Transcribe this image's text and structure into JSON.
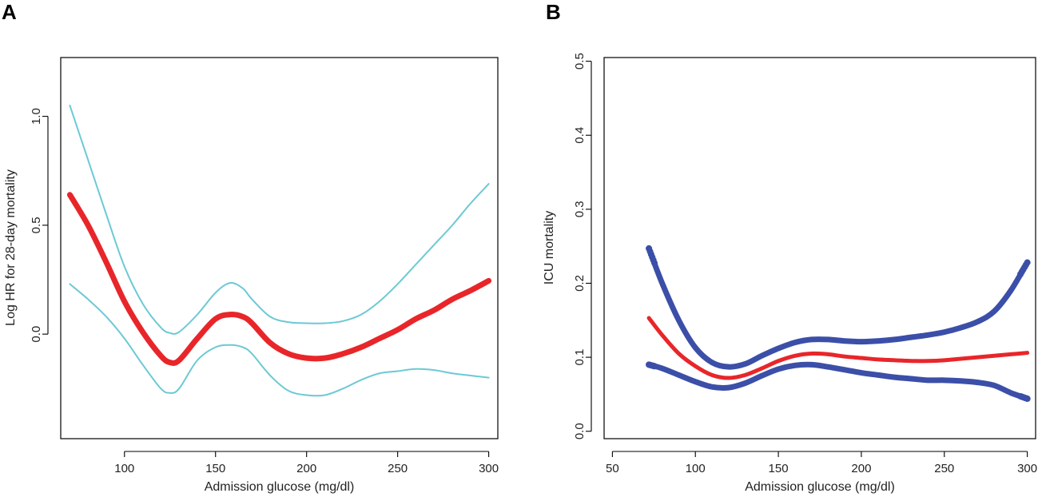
{
  "chart_data": [
    {
      "panel": "A",
      "type": "line",
      "title": "",
      "xlabel": "Admission glucose (mg/dl)",
      "ylabel": "Log HR for 28-day mortality",
      "xlim": [
        65,
        305
      ],
      "ylim": [
        -0.48,
        1.27
      ],
      "xticks": [
        100,
        150,
        200,
        250,
        300
      ],
      "yticks": [
        0.0,
        0.5,
        1.0
      ],
      "ytick_labels": [
        "0.0",
        "0.5",
        "1.0"
      ],
      "grid": false,
      "legend": "none",
      "colors": {
        "estimate": "#e8262a",
        "ci": "#6cc9d4"
      },
      "x": [
        70,
        80,
        90,
        100,
        110,
        120,
        125,
        130,
        140,
        150,
        158,
        165,
        170,
        180,
        190,
        200,
        210,
        220,
        230,
        240,
        250,
        260,
        270,
        280,
        290,
        300
      ],
      "series": [
        {
          "name": "Log HR",
          "values": [
            0.64,
            0.5,
            0.33,
            0.15,
            0.01,
            -0.1,
            -0.13,
            -0.12,
            -0.02,
            0.07,
            0.09,
            0.08,
            0.05,
            -0.04,
            -0.09,
            -0.11,
            -0.11,
            -0.09,
            -0.06,
            -0.02,
            0.02,
            0.07,
            0.11,
            0.16,
            0.2,
            0.245
          ]
        },
        {
          "name": "Upper 95% CI",
          "values": [
            1.05,
            0.8,
            0.55,
            0.31,
            0.14,
            0.03,
            0.005,
            0.01,
            0.09,
            0.19,
            0.235,
            0.21,
            0.16,
            0.08,
            0.055,
            0.05,
            0.05,
            0.06,
            0.09,
            0.15,
            0.23,
            0.32,
            0.41,
            0.5,
            0.6,
            0.69
          ]
        },
        {
          "name": "Lower 95% CI",
          "values": [
            0.23,
            0.16,
            0.08,
            -0.02,
            -0.14,
            -0.25,
            -0.27,
            -0.25,
            -0.12,
            -0.06,
            -0.05,
            -0.06,
            -0.09,
            -0.19,
            -0.26,
            -0.28,
            -0.28,
            -0.25,
            -0.21,
            -0.18,
            -0.17,
            -0.16,
            -0.165,
            -0.18,
            -0.19,
            -0.2
          ]
        }
      ]
    },
    {
      "panel": "B",
      "type": "line",
      "title": "",
      "xlabel": "Admission glucose (mg/dl)",
      "ylabel": "ICU mortality",
      "xlim": [
        45,
        305
      ],
      "ylim": [
        -0.01,
        0.505
      ],
      "xticks": [
        50,
        100,
        150,
        200,
        250,
        300
      ],
      "yticks": [
        0.0,
        0.1,
        0.2,
        0.3,
        0.4,
        0.5
      ],
      "ytick_labels": [
        "0.0",
        "0.1",
        "0.2",
        "0.3",
        "0.4",
        "0.5"
      ],
      "grid": false,
      "legend": "none",
      "colors": {
        "estimate": "#e8262a",
        "ci": "#3b4fa8"
      },
      "x": [
        72,
        80,
        90,
        100,
        110,
        120,
        130,
        140,
        150,
        160,
        170,
        180,
        190,
        200,
        210,
        220,
        230,
        240,
        250,
        260,
        270,
        280,
        290,
        300
      ],
      "series": [
        {
          "name": "ICU mortality",
          "values": [
            0.153,
            0.13,
            0.105,
            0.088,
            0.076,
            0.072,
            0.076,
            0.085,
            0.095,
            0.102,
            0.105,
            0.104,
            0.101,
            0.099,
            0.097,
            0.096,
            0.095,
            0.095,
            0.096,
            0.098,
            0.1,
            0.102,
            0.104,
            0.106
          ]
        },
        {
          "name": "Upper 95% CI",
          "values": [
            0.247,
            0.2,
            0.15,
            0.113,
            0.093,
            0.087,
            0.091,
            0.102,
            0.112,
            0.12,
            0.124,
            0.124,
            0.122,
            0.121,
            0.122,
            0.124,
            0.127,
            0.13,
            0.134,
            0.14,
            0.148,
            0.162,
            0.19,
            0.228
          ]
        },
        {
          "name": "Lower 95% CI",
          "values": [
            0.09,
            0.085,
            0.076,
            0.067,
            0.06,
            0.059,
            0.065,
            0.075,
            0.084,
            0.089,
            0.09,
            0.087,
            0.083,
            0.079,
            0.076,
            0.073,
            0.071,
            0.069,
            0.069,
            0.068,
            0.066,
            0.062,
            0.052,
            0.044
          ]
        }
      ]
    }
  ]
}
